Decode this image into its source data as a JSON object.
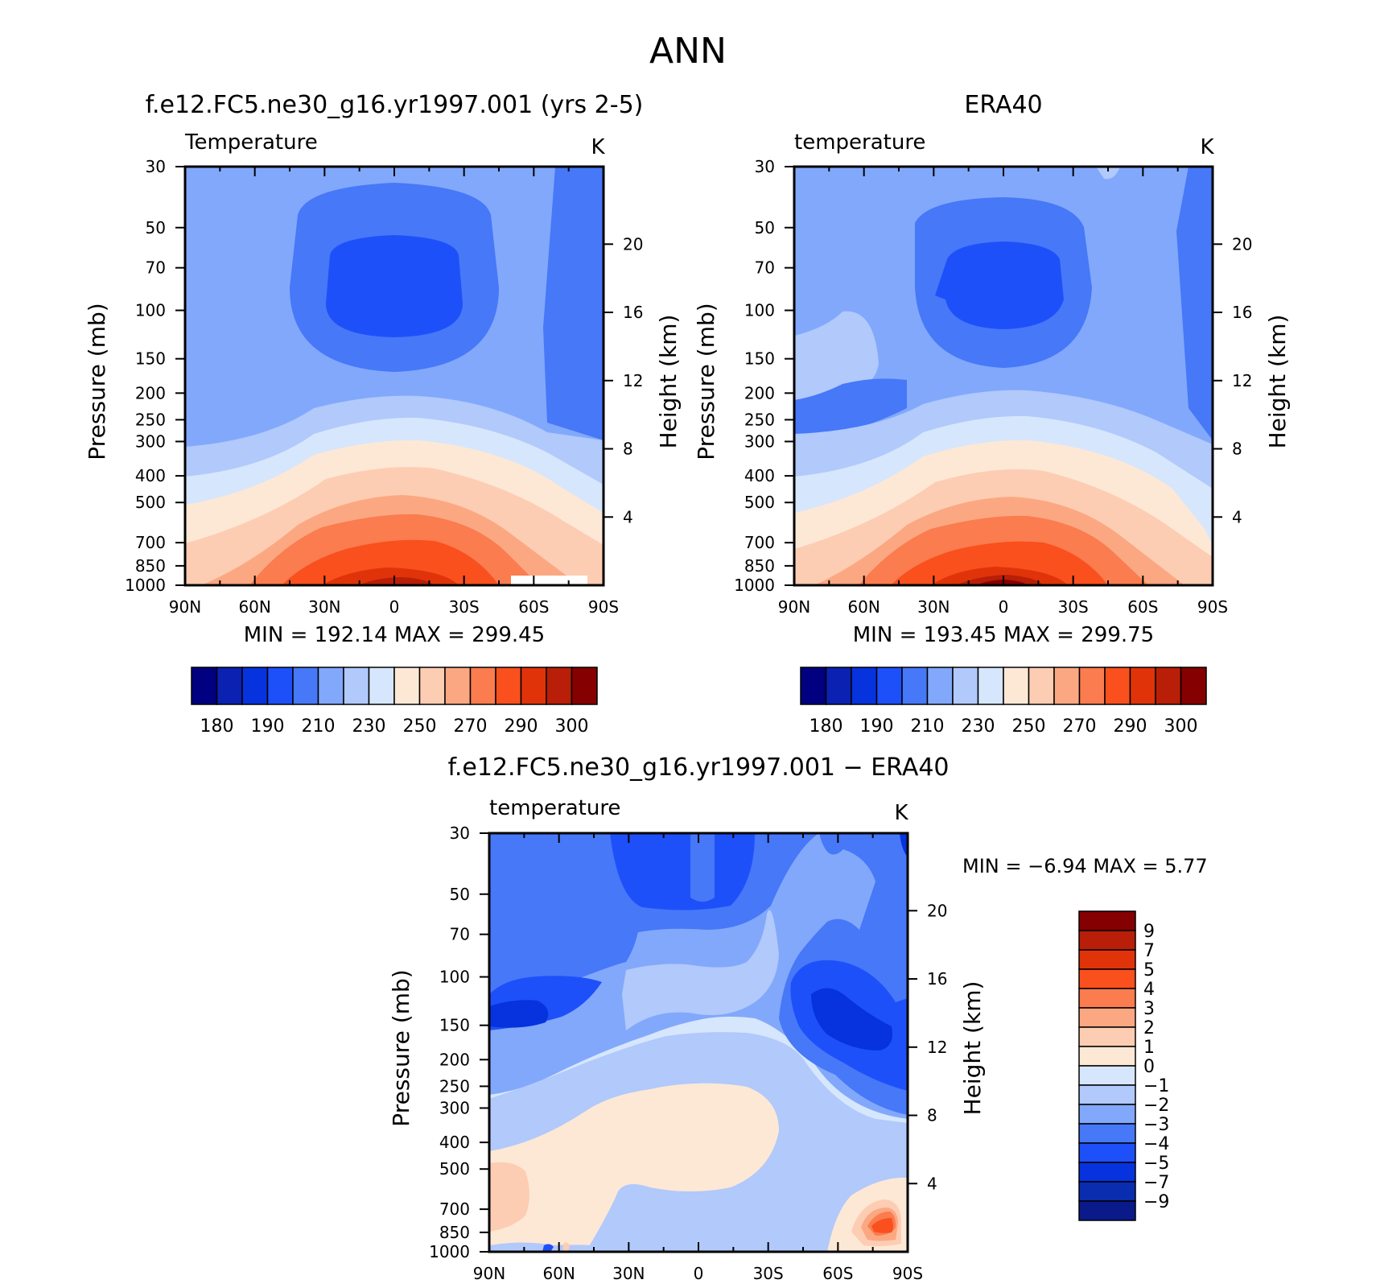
{
  "page_title": "ANN",
  "colors": {
    "temp_palette": [
      "#000080",
      "#0a21b1",
      "#0633de",
      "#1e50fa",
      "#4678f8",
      "#82a8fb",
      "#b1c9fb",
      "#d6e6fc",
      "#fde8d6",
      "#fdcdb3",
      "#fba882",
      "#fa7c4f",
      "#f9501e",
      "#e0330a",
      "#b81e08",
      "#850000"
    ],
    "diff_palette": [
      "#0a1a8a",
      "#0a2db0",
      "#0633de",
      "#1e50fa",
      "#4678f8",
      "#82a8fb",
      "#b1c9fb",
      "#d6e6fc",
      "#fde8d6",
      "#fdcdb3",
      "#fba882",
      "#fa7c4f",
      "#f9501e",
      "#e0330a",
      "#b81e08",
      "#850000"
    ]
  },
  "chart_data": [
    {
      "type": "heatmap",
      "name": "model",
      "title": "f.e12.FC5.ne30_g16.yr1997.001 (yrs 2-5)",
      "field_label": "Temperature",
      "units": "K",
      "ylabel": "Pressure (mb)",
      "y2label": "Height (km)",
      "x_ticks": [
        "90N",
        "60N",
        "30N",
        "0",
        "30S",
        "60S",
        "90S"
      ],
      "y_ticks": [
        "30",
        "50",
        "70",
        "100",
        "150",
        "200",
        "250",
        "300",
        "400",
        "500",
        "700",
        "850",
        "1000"
      ],
      "y2_ticks": [
        "20",
        "16",
        "12",
        "8",
        "4"
      ],
      "min_label": "MIN",
      "min": "192.14",
      "max_label": "MAX",
      "max": "299.45",
      "colorbar_labels": [
        "180",
        "190",
        "210",
        "230",
        "250",
        "270",
        "290",
        "300"
      ]
    },
    {
      "type": "heatmap",
      "name": "obs",
      "title": "ERA40",
      "field_label": "temperature",
      "units": "K",
      "ylabel": "Pressure (mb)",
      "y2label": "Height (km)",
      "x_ticks": [
        "90N",
        "60N",
        "30N",
        "0",
        "30S",
        "60S",
        "90S"
      ],
      "y_ticks": [
        "30",
        "50",
        "70",
        "100",
        "150",
        "200",
        "250",
        "300",
        "400",
        "500",
        "700",
        "850",
        "1000"
      ],
      "y2_ticks": [
        "20",
        "16",
        "12",
        "8",
        "4"
      ],
      "min_label": "MIN",
      "min": "193.45",
      "max_label": "MAX",
      "max": "299.75",
      "colorbar_labels": [
        "180",
        "190",
        "210",
        "230",
        "250",
        "270",
        "290",
        "300"
      ]
    },
    {
      "type": "heatmap",
      "name": "difference",
      "title": "f.e12.FC5.ne30_g16.yr1997.001 − ERA40",
      "field_label": "temperature",
      "units": "K",
      "ylabel": "Pressure (mb)",
      "y2label": "Height (km)",
      "x_ticks": [
        "90N",
        "60N",
        "30N",
        "0",
        "30S",
        "60S",
        "90S"
      ],
      "y_ticks": [
        "30",
        "50",
        "70",
        "100",
        "150",
        "200",
        "250",
        "300",
        "400",
        "500",
        "700",
        "850",
        "1000"
      ],
      "y2_ticks": [
        "20",
        "16",
        "12",
        "8",
        "4"
      ],
      "min_label": "MIN",
      "min": "−6.94",
      "max_label": "MAX",
      "max": "5.77",
      "colorbar_labels": [
        "9",
        "7",
        "5",
        "4",
        "3",
        "2",
        "1",
        "0",
        "−1",
        "−2",
        "−3",
        "−4",
        "−5",
        "−7",
        "−9"
      ]
    }
  ]
}
